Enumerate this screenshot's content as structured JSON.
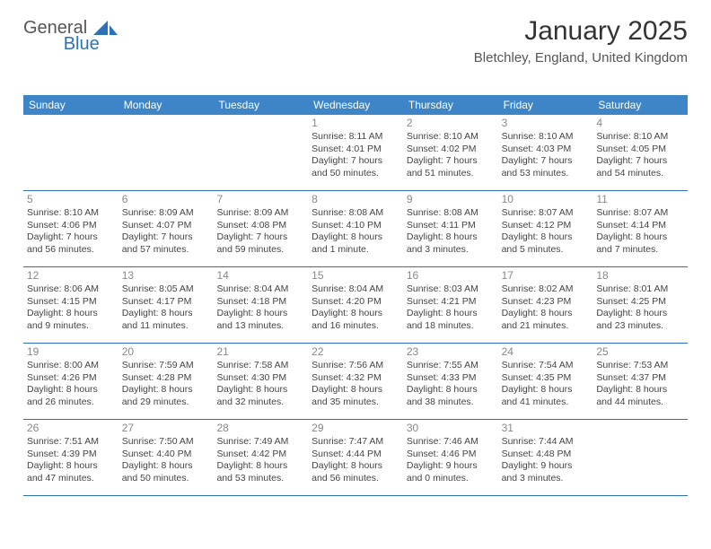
{
  "brand": {
    "part1": "General",
    "part2": "Blue"
  },
  "header": {
    "month_title": "January 2025",
    "location": "Bletchley, England, United Kingdom"
  },
  "colors": {
    "header_bar": "#3d85c6",
    "rule": "#2d72b8",
    "daynum": "#888888",
    "text": "#444444"
  },
  "day_names": [
    "Sunday",
    "Monday",
    "Tuesday",
    "Wednesday",
    "Thursday",
    "Friday",
    "Saturday"
  ],
  "weeks": [
    [
      {
        "n": "",
        "sr": "",
        "ss": "",
        "dl": ""
      },
      {
        "n": "",
        "sr": "",
        "ss": "",
        "dl": ""
      },
      {
        "n": "",
        "sr": "",
        "ss": "",
        "dl": ""
      },
      {
        "n": "1",
        "sr": "Sunrise: 8:11 AM",
        "ss": "Sunset: 4:01 PM",
        "dl": "Daylight: 7 hours and 50 minutes."
      },
      {
        "n": "2",
        "sr": "Sunrise: 8:10 AM",
        "ss": "Sunset: 4:02 PM",
        "dl": "Daylight: 7 hours and 51 minutes."
      },
      {
        "n": "3",
        "sr": "Sunrise: 8:10 AM",
        "ss": "Sunset: 4:03 PM",
        "dl": "Daylight: 7 hours and 53 minutes."
      },
      {
        "n": "4",
        "sr": "Sunrise: 8:10 AM",
        "ss": "Sunset: 4:05 PM",
        "dl": "Daylight: 7 hours and 54 minutes."
      }
    ],
    [
      {
        "n": "5",
        "sr": "Sunrise: 8:10 AM",
        "ss": "Sunset: 4:06 PM",
        "dl": "Daylight: 7 hours and 56 minutes."
      },
      {
        "n": "6",
        "sr": "Sunrise: 8:09 AM",
        "ss": "Sunset: 4:07 PM",
        "dl": "Daylight: 7 hours and 57 minutes."
      },
      {
        "n": "7",
        "sr": "Sunrise: 8:09 AM",
        "ss": "Sunset: 4:08 PM",
        "dl": "Daylight: 7 hours and 59 minutes."
      },
      {
        "n": "8",
        "sr": "Sunrise: 8:08 AM",
        "ss": "Sunset: 4:10 PM",
        "dl": "Daylight: 8 hours and 1 minute."
      },
      {
        "n": "9",
        "sr": "Sunrise: 8:08 AM",
        "ss": "Sunset: 4:11 PM",
        "dl": "Daylight: 8 hours and 3 minutes."
      },
      {
        "n": "10",
        "sr": "Sunrise: 8:07 AM",
        "ss": "Sunset: 4:12 PM",
        "dl": "Daylight: 8 hours and 5 minutes."
      },
      {
        "n": "11",
        "sr": "Sunrise: 8:07 AM",
        "ss": "Sunset: 4:14 PM",
        "dl": "Daylight: 8 hours and 7 minutes."
      }
    ],
    [
      {
        "n": "12",
        "sr": "Sunrise: 8:06 AM",
        "ss": "Sunset: 4:15 PM",
        "dl": "Daylight: 8 hours and 9 minutes."
      },
      {
        "n": "13",
        "sr": "Sunrise: 8:05 AM",
        "ss": "Sunset: 4:17 PM",
        "dl": "Daylight: 8 hours and 11 minutes."
      },
      {
        "n": "14",
        "sr": "Sunrise: 8:04 AM",
        "ss": "Sunset: 4:18 PM",
        "dl": "Daylight: 8 hours and 13 minutes."
      },
      {
        "n": "15",
        "sr": "Sunrise: 8:04 AM",
        "ss": "Sunset: 4:20 PM",
        "dl": "Daylight: 8 hours and 16 minutes."
      },
      {
        "n": "16",
        "sr": "Sunrise: 8:03 AM",
        "ss": "Sunset: 4:21 PM",
        "dl": "Daylight: 8 hours and 18 minutes."
      },
      {
        "n": "17",
        "sr": "Sunrise: 8:02 AM",
        "ss": "Sunset: 4:23 PM",
        "dl": "Daylight: 8 hours and 21 minutes."
      },
      {
        "n": "18",
        "sr": "Sunrise: 8:01 AM",
        "ss": "Sunset: 4:25 PM",
        "dl": "Daylight: 8 hours and 23 minutes."
      }
    ],
    [
      {
        "n": "19",
        "sr": "Sunrise: 8:00 AM",
        "ss": "Sunset: 4:26 PM",
        "dl": "Daylight: 8 hours and 26 minutes."
      },
      {
        "n": "20",
        "sr": "Sunrise: 7:59 AM",
        "ss": "Sunset: 4:28 PM",
        "dl": "Daylight: 8 hours and 29 minutes."
      },
      {
        "n": "21",
        "sr": "Sunrise: 7:58 AM",
        "ss": "Sunset: 4:30 PM",
        "dl": "Daylight: 8 hours and 32 minutes."
      },
      {
        "n": "22",
        "sr": "Sunrise: 7:56 AM",
        "ss": "Sunset: 4:32 PM",
        "dl": "Daylight: 8 hours and 35 minutes."
      },
      {
        "n": "23",
        "sr": "Sunrise: 7:55 AM",
        "ss": "Sunset: 4:33 PM",
        "dl": "Daylight: 8 hours and 38 minutes."
      },
      {
        "n": "24",
        "sr": "Sunrise: 7:54 AM",
        "ss": "Sunset: 4:35 PM",
        "dl": "Daylight: 8 hours and 41 minutes."
      },
      {
        "n": "25",
        "sr": "Sunrise: 7:53 AM",
        "ss": "Sunset: 4:37 PM",
        "dl": "Daylight: 8 hours and 44 minutes."
      }
    ],
    [
      {
        "n": "26",
        "sr": "Sunrise: 7:51 AM",
        "ss": "Sunset: 4:39 PM",
        "dl": "Daylight: 8 hours and 47 minutes."
      },
      {
        "n": "27",
        "sr": "Sunrise: 7:50 AM",
        "ss": "Sunset: 4:40 PM",
        "dl": "Daylight: 8 hours and 50 minutes."
      },
      {
        "n": "28",
        "sr": "Sunrise: 7:49 AM",
        "ss": "Sunset: 4:42 PM",
        "dl": "Daylight: 8 hours and 53 minutes."
      },
      {
        "n": "29",
        "sr": "Sunrise: 7:47 AM",
        "ss": "Sunset: 4:44 PM",
        "dl": "Daylight: 8 hours and 56 minutes."
      },
      {
        "n": "30",
        "sr": "Sunrise: 7:46 AM",
        "ss": "Sunset: 4:46 PM",
        "dl": "Daylight: 9 hours and 0 minutes."
      },
      {
        "n": "31",
        "sr": "Sunrise: 7:44 AM",
        "ss": "Sunset: 4:48 PM",
        "dl": "Daylight: 9 hours and 3 minutes."
      },
      {
        "n": "",
        "sr": "",
        "ss": "",
        "dl": ""
      }
    ]
  ]
}
